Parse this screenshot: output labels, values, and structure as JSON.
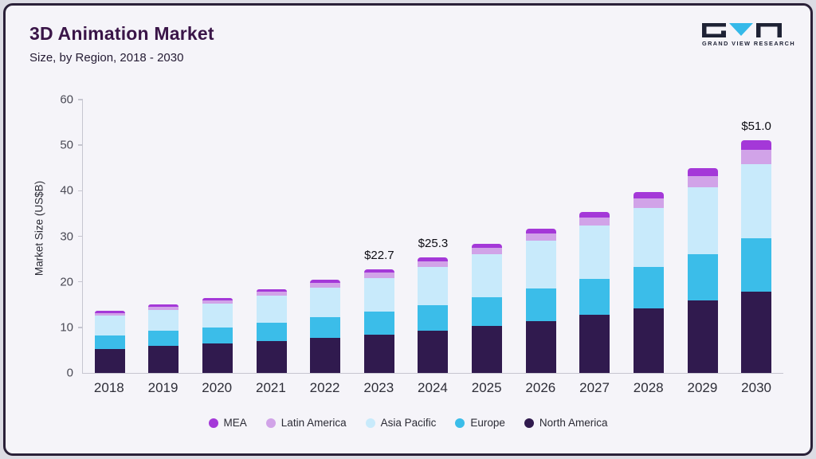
{
  "header": {
    "title": "3D Animation Market",
    "subtitle": "Size, by Region, 2018 - 2030"
  },
  "logo": {
    "text": "GRAND VIEW RESEARCH",
    "dark_color": "#1e2235",
    "accent_color": "#35b9e9"
  },
  "chart_data": {
    "type": "bar",
    "stacked": true,
    "title": "3D Animation Market Size, by Region, 2018 - 2030",
    "ylabel": "Market Size (US$B)",
    "ylim": [
      0,
      60
    ],
    "yticks": [
      0,
      10,
      20,
      30,
      40,
      50,
      60
    ],
    "grid": false,
    "categories": [
      "2018",
      "2019",
      "2020",
      "2021",
      "2022",
      "2023",
      "2024",
      "2025",
      "2026",
      "2027",
      "2028",
      "2029",
      "2030"
    ],
    "series": [
      {
        "name": "North America",
        "color": "#301a4e",
        "values": [
          5.3,
          5.9,
          6.4,
          7.0,
          7.7,
          8.4,
          9.3,
          10.3,
          11.4,
          12.7,
          14.2,
          15.9,
          17.8
        ]
      },
      {
        "name": "Europe",
        "color": "#3bbde9",
        "values": [
          3.0,
          3.3,
          3.6,
          4.0,
          4.5,
          5.0,
          5.6,
          6.3,
          7.1,
          8.0,
          9.0,
          10.2,
          11.7
        ]
      },
      {
        "name": "Asia Pacific",
        "color": "#c8eafb",
        "values": [
          4.3,
          4.7,
          5.2,
          5.9,
          6.6,
          7.5,
          8.4,
          9.4,
          10.5,
          11.7,
          13.1,
          14.6,
          16.4
        ]
      },
      {
        "name": "Latin America",
        "color": "#d1a3e8",
        "values": [
          0.6,
          0.7,
          0.8,
          0.9,
          1.0,
          1.1,
          1.2,
          1.4,
          1.6,
          1.8,
          2.1,
          2.6,
          3.0
        ]
      },
      {
        "name": "MEA",
        "color": "#a438d8",
        "values": [
          0.4,
          0.4,
          0.5,
          0.6,
          0.6,
          0.7,
          0.8,
          0.9,
          1.0,
          1.1,
          1.4,
          1.6,
          2.1
        ]
      }
    ],
    "annotations": {
      "2023": "$22.7",
      "2024": "$25.3",
      "2030": "$51.0"
    },
    "legend_position": "bottom"
  },
  "legend": {
    "items": [
      {
        "label": "MEA",
        "color": "#a438d8"
      },
      {
        "label": "Latin America",
        "color": "#d1a3e8"
      },
      {
        "label": "Asia Pacific",
        "color": "#c8eafb"
      },
      {
        "label": "Europe",
        "color": "#3bbde9"
      },
      {
        "label": "North America",
        "color": "#301a4e"
      }
    ]
  }
}
